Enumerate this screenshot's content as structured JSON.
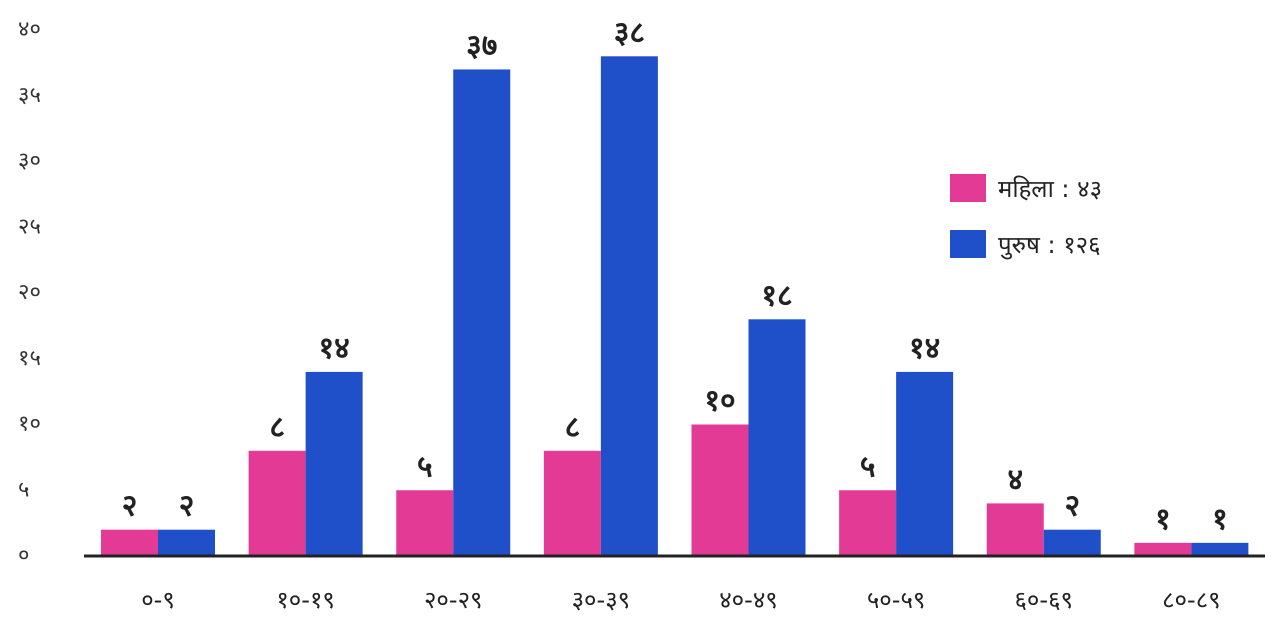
{
  "chart_data": {
    "type": "bar",
    "title": "",
    "xlabel": "",
    "ylabel": "",
    "categories": [
      "०-९",
      "१०-१९",
      "२०-२९",
      "३०-३९",
      "४०-४९",
      "५०-५९",
      "६०-६९",
      "८०-८९"
    ],
    "series": [
      {
        "name": "महिला",
        "color": "#e33a96",
        "values": [
          2,
          8,
          5,
          8,
          10,
          5,
          4,
          1
        ],
        "labels": [
          "२",
          "८",
          "५",
          "८",
          "१०",
          "५",
          "४",
          "१"
        ]
      },
      {
        "name": "पुरुष",
        "color": "#1f4fc9",
        "values": [
          2,
          14,
          37,
          38,
          18,
          14,
          2,
          1
        ],
        "labels": [
          "२",
          "१४",
          "३७",
          "३८",
          "१८",
          "१४",
          "२",
          "१"
        ]
      }
    ],
    "ylim": [
      0,
      40
    ],
    "yticks": [
      0,
      5,
      10,
      15,
      20,
      25,
      30,
      35,
      40
    ],
    "ytick_labels": [
      "०",
      "५",
      "१०",
      "१५",
      "२०",
      "२५",
      "३०",
      "३५",
      "४०"
    ],
    "grid": false,
    "legend": {
      "position": "right",
      "entries": [
        {
          "text": "महिला : ४३"
        },
        {
          "text": "पुरुष : १२६"
        }
      ]
    }
  }
}
